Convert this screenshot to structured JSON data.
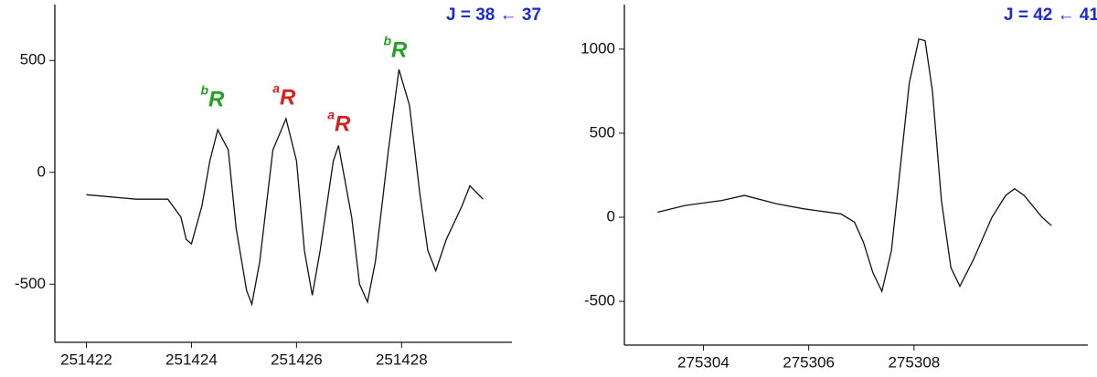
{
  "chart_data": [
    {
      "type": "line",
      "label": "J = 38 ← 37",
      "label_color": "#1c2bd0",
      "x": [
        251422.0,
        251422.95,
        251423.55,
        251423.8,
        251423.9,
        251424.0,
        251424.2,
        251424.35,
        251424.5,
        251424.7,
        251424.85,
        251425.05,
        251425.15,
        251425.3,
        251425.55,
        251425.8,
        251426.0,
        251426.15,
        251426.3,
        251426.45,
        251426.7,
        251426.8,
        251427.05,
        251427.2,
        251427.35,
        251427.5,
        251427.75,
        251427.95,
        251428.15,
        251428.35,
        251428.5,
        251428.65,
        251428.85,
        251429.15,
        251429.3,
        251429.55
      ],
      "series": [
        {
          "color": "#111111",
          "values": [
            -100,
            -120,
            -120,
            -200,
            -300,
            -320,
            -150,
            50,
            190,
            100,
            -250,
            -530,
            -590,
            -400,
            100,
            240,
            50,
            -350,
            -550,
            -350,
            50,
            120,
            -200,
            -500,
            -580,
            -400,
            100,
            460,
            300,
            -100,
            -350,
            -440,
            -300,
            -150,
            -60,
            -120
          ]
        }
      ],
      "annotations": [
        {
          "text": "R",
          "sup": "b",
          "color": "#22a022"
        },
        {
          "text": "R",
          "sup": "a",
          "color": "#d42020"
        },
        {
          "text": "R",
          "sup": "a",
          "color": "#d42020"
        },
        {
          "text": "R",
          "sup": "b",
          "color": "#22a022"
        }
      ],
      "xlim": [
        251421.4,
        251430.1
      ],
      "xticks": [
        251422,
        251424,
        251426,
        251428
      ],
      "ylim": [
        -760,
        750
      ],
      "yticks": [
        -500,
        0,
        500
      ]
    },
    {
      "type": "line",
      "label": "J = 42 ← 41",
      "label_color": "#1c2bd0",
      "x": [
        275303.13,
        275303.65,
        275304.35,
        275304.78,
        275305.39,
        275305.91,
        275306.61,
        275306.87,
        275307.04,
        275307.22,
        275307.39,
        275307.57,
        275307.74,
        275307.91,
        275308.09,
        275308.21,
        275308.35,
        275308.52,
        275308.7,
        275308.87,
        275309.13,
        275309.48,
        275309.74,
        275309.91,
        275310.09,
        275310.43,
        275310.61
      ],
      "series": [
        {
          "color": "#111111",
          "values": [
            30,
            70,
            100,
            130,
            80,
            50,
            20,
            -30,
            -150,
            -330,
            -440,
            -200,
            300,
            800,
            1060,
            1050,
            750,
            100,
            -300,
            -410,
            -250,
            0,
            130,
            170,
            130,
            0,
            -50
          ]
        }
      ],
      "xlim": [
        275302.5,
        275311.3
      ],
      "xticks": [
        275304,
        275306,
        275308
      ],
      "ylim": [
        -760,
        1265
      ],
      "yticks": [
        -500,
        0,
        500,
        1000
      ]
    }
  ]
}
